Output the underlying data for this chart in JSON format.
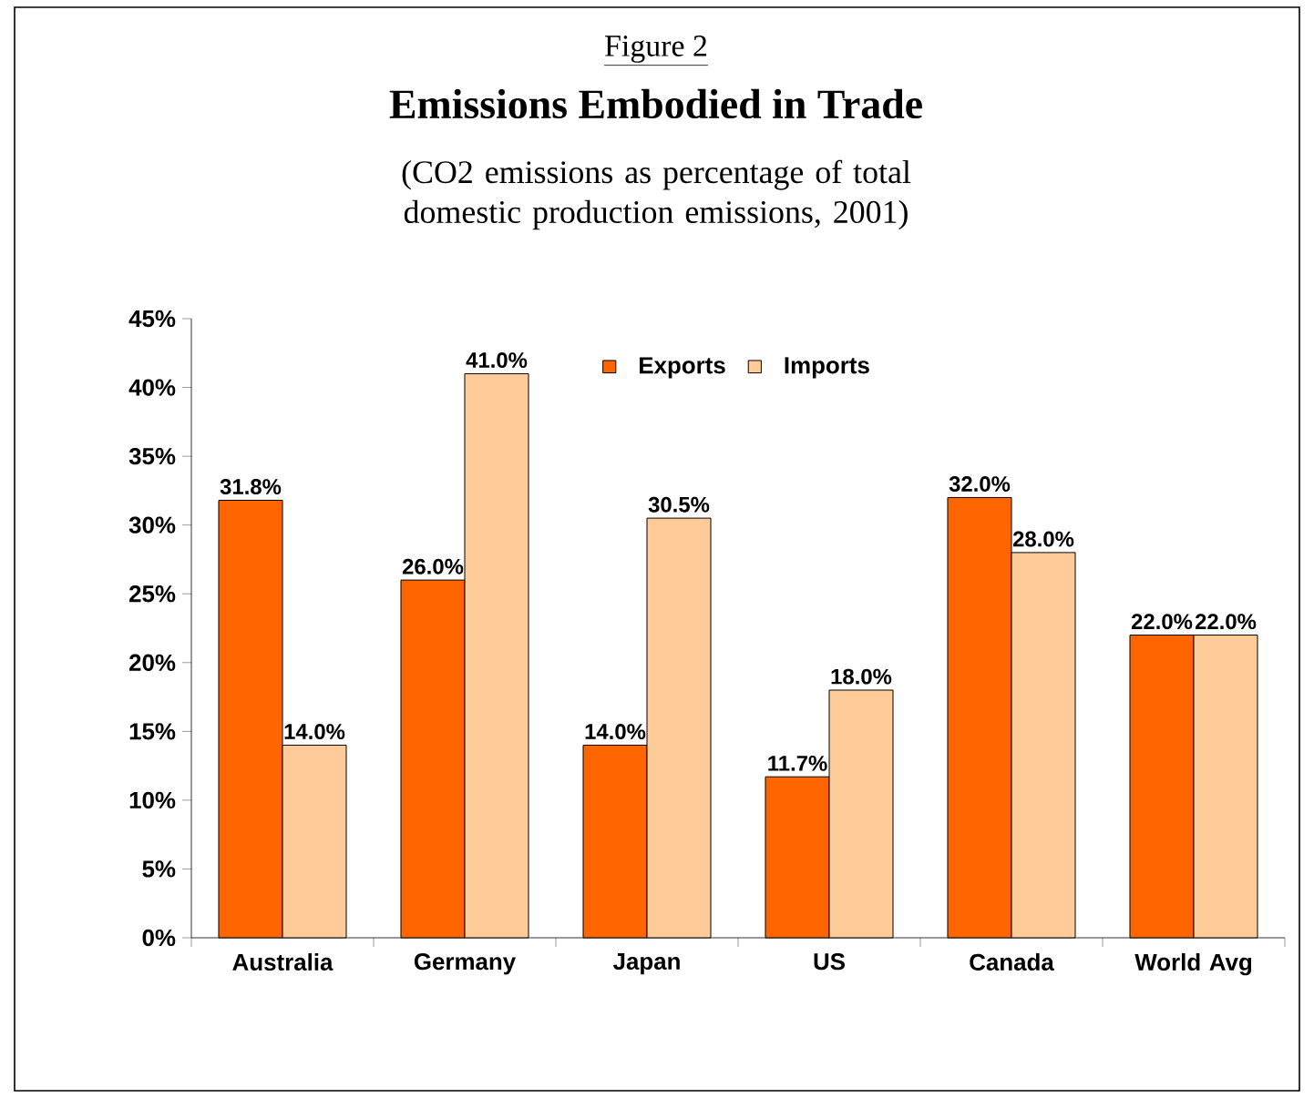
{
  "chart_data": {
    "type": "bar",
    "title": "Emissions Embodied in Trade",
    "subtitle": "(CO2 emissions as percentage of total domestic production emissions, 2001)",
    "annotations": [
      "Figure 2"
    ],
    "categories": [
      "Australia",
      "Germany",
      "Japan",
      "US",
      "Canada",
      "World Avg"
    ],
    "series": [
      {
        "name": "Exports",
        "color": "#ff6600",
        "values": [
          31.8,
          26.0,
          14.0,
          11.7,
          32.0,
          22.0
        ],
        "value_labels": [
          "31.8%",
          "26.0%",
          "14.0%",
          "11.7%",
          "32.0%",
          "22.0%"
        ]
      },
      {
        "name": "Imports",
        "color": "#ffcc99",
        "values": [
          14.0,
          41.0,
          30.5,
          18.0,
          28.0,
          22.0
        ],
        "value_labels": [
          "14.0%",
          "41.0%",
          "30.5%",
          "18.0%",
          "28.0%",
          "22.0%"
        ]
      }
    ],
    "ylim": [
      0,
      45
    ],
    "yticks": [
      {
        "value": 0,
        "label": "0%"
      },
      {
        "value": 5,
        "label": "5%"
      },
      {
        "value": 10,
        "label": "10%"
      },
      {
        "value": 15,
        "label": "15%"
      },
      {
        "value": 20,
        "label": "20%"
      },
      {
        "value": 25,
        "label": "25%"
      },
      {
        "value": 30,
        "label": "30%"
      },
      {
        "value": 35,
        "label": "35%"
      },
      {
        "value": 40,
        "label": "40%"
      },
      {
        "value": 45,
        "label": "45%"
      }
    ],
    "grid": false,
    "legend": "top"
  }
}
